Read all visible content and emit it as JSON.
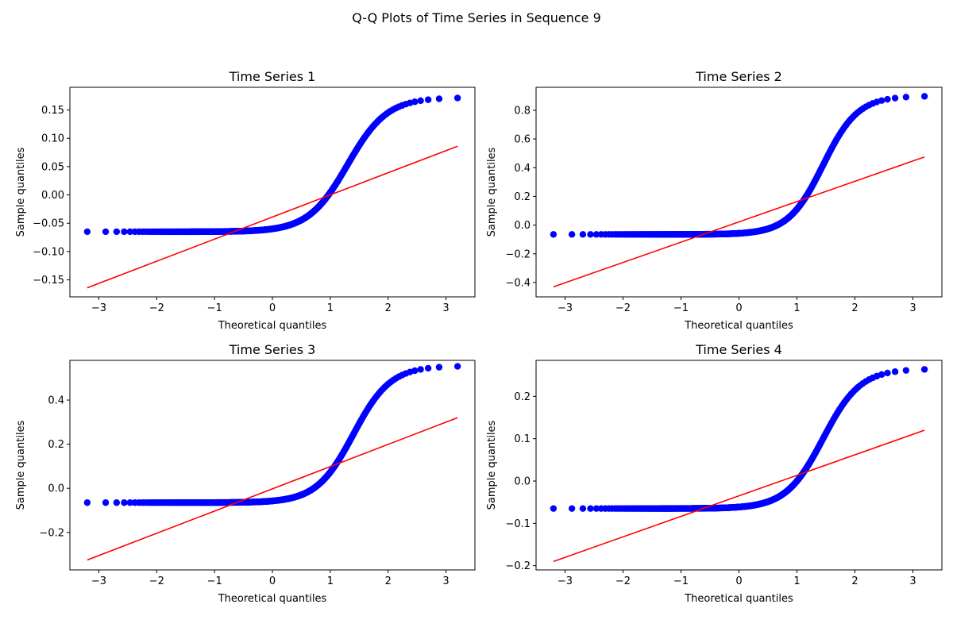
{
  "figure_title": "Q-Q Plots of Time Series in Sequence 9",
  "chart_data": [
    {
      "type": "scatter",
      "title": "Time Series 1",
      "xlabel": "Theoretical quantiles",
      "ylabel": "Sample quantiles",
      "xlim": [
        -3.5,
        3.5
      ],
      "ylim": [
        -0.18,
        0.19
      ],
      "xticks": [
        -3,
        -2,
        -1,
        0,
        1,
        2,
        3
      ],
      "yticks": [
        -0.15,
        -0.1,
        -0.05,
        0.0,
        0.05,
        0.1,
        0.15
      ],
      "ytick_labels": [
        "−0.15",
        "−0.10",
        "−0.05",
        "0.00",
        "0.05",
        "0.10",
        "0.15"
      ],
      "grid": false,
      "quantile_points": {
        "x_range": [
          -3.2,
          3.2
        ],
        "floor": -0.065,
        "ceiling": 0.172,
        "center": 1.3,
        "spread": 0.34
      },
      "reference_line": {
        "x": [
          -3.2,
          3.2
        ],
        "y": [
          -0.164,
          0.086
        ]
      },
      "colors": {
        "points": "#0000ff",
        "line": "#ff0000"
      }
    },
    {
      "type": "scatter",
      "title": "Time Series 2",
      "xlabel": "Theoretical quantiles",
      "ylabel": "Sample quantiles",
      "xlim": [
        -3.5,
        3.5
      ],
      "ylim": [
        -0.5,
        0.96
      ],
      "xticks": [
        -3,
        -2,
        -1,
        0,
        1,
        2,
        3
      ],
      "yticks": [
        -0.4,
        -0.2,
        0.0,
        0.2,
        0.4,
        0.6,
        0.8
      ],
      "ytick_labels": [
        "−0.4",
        "−0.2",
        "0.0",
        "0.2",
        "0.4",
        "0.6",
        "0.8"
      ],
      "grid": false,
      "quantile_points": {
        "x_range": [
          -3.2,
          3.2
        ],
        "floor": -0.065,
        "ceiling": 0.9,
        "center": 1.45,
        "spread": 0.3
      },
      "reference_line": {
        "x": [
          -3.2,
          3.2
        ],
        "y": [
          -0.43,
          0.475
        ]
      },
      "colors": {
        "points": "#0000ff",
        "line": "#ff0000"
      }
    },
    {
      "type": "scatter",
      "title": "Time Series 3",
      "xlabel": "Theoretical quantiles",
      "ylabel": "Sample quantiles",
      "xlim": [
        -3.5,
        3.5
      ],
      "ylim": [
        -0.37,
        0.58
      ],
      "xticks": [
        -3,
        -2,
        -1,
        0,
        1,
        2,
        3
      ],
      "yticks": [
        -0.2,
        0.0,
        0.2,
        0.4
      ],
      "ytick_labels": [
        "−0.2",
        "0.0",
        "0.2",
        "0.4"
      ],
      "grid": false,
      "quantile_points": {
        "x_range": [
          -3.2,
          3.2
        ],
        "floor": -0.065,
        "ceiling": 0.555,
        "center": 1.4,
        "spread": 0.32
      },
      "reference_line": {
        "x": [
          -3.2,
          3.2
        ],
        "y": [
          -0.325,
          0.32
        ]
      },
      "colors": {
        "points": "#0000ff",
        "line": "#ff0000"
      }
    },
    {
      "type": "scatter",
      "title": "Time Series 4",
      "xlabel": "Theoretical quantiles",
      "ylabel": "Sample quantiles",
      "xlim": [
        -3.5,
        3.5
      ],
      "ylim": [
        -0.21,
        0.285
      ],
      "xticks": [
        -3,
        -2,
        -1,
        0,
        1,
        2,
        3
      ],
      "yticks": [
        -0.2,
        -0.1,
        0.0,
        0.1,
        0.2
      ],
      "ytick_labels": [
        "−0.2",
        "−0.1",
        "0.0",
        "0.1",
        "0.2"
      ],
      "grid": false,
      "quantile_points": {
        "x_range": [
          -3.2,
          3.2
        ],
        "floor": -0.065,
        "ceiling": 0.265,
        "center": 1.45,
        "spread": 0.32
      },
      "reference_line": {
        "x": [
          -3.2,
          3.2
        ],
        "y": [
          -0.19,
          0.12
        ]
      },
      "colors": {
        "points": "#0000ff",
        "line": "#ff0000"
      }
    }
  ]
}
